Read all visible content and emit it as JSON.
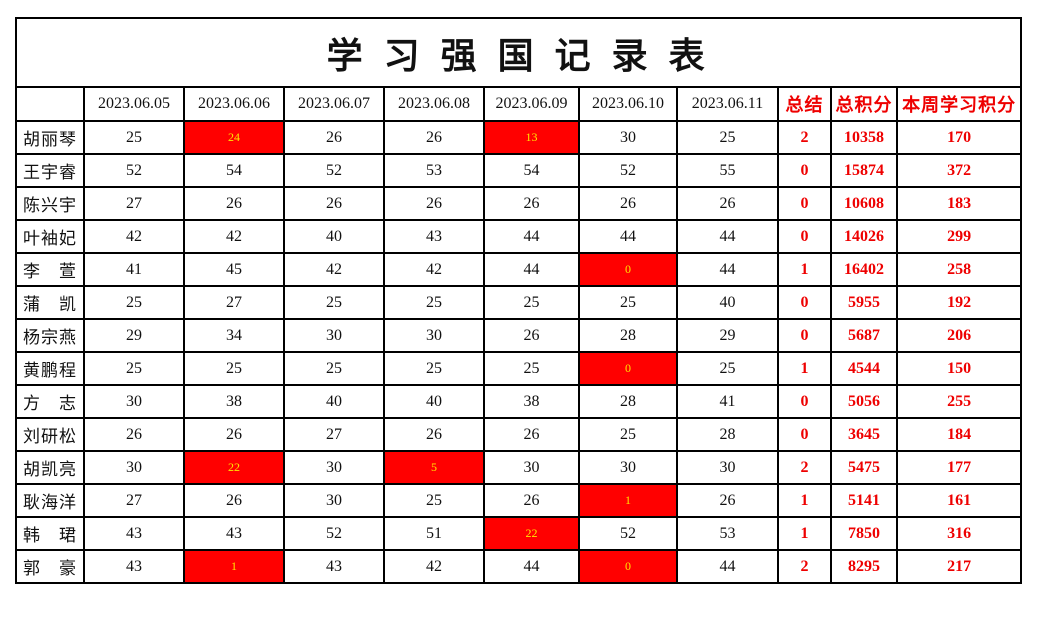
{
  "title": "学 习 强 国 记 录 表",
  "columns": [
    {
      "label": "",
      "accent": false
    },
    {
      "label": "2023.06.05",
      "accent": false
    },
    {
      "label": "2023.06.06",
      "accent": false
    },
    {
      "label": "2023.06.07",
      "accent": false
    },
    {
      "label": "2023.06.08",
      "accent": false
    },
    {
      "label": "2023.06.09",
      "accent": false
    },
    {
      "label": "2023.06.10",
      "accent": false
    },
    {
      "label": "2023.06.11",
      "accent": false
    },
    {
      "label": "总结",
      "accent": true
    },
    {
      "label": "总积分",
      "accent": true
    },
    {
      "label": "本周学习积分",
      "accent": true
    }
  ],
  "rows": [
    {
      "name": "胡丽琴",
      "daily": [
        {
          "v": "25",
          "hl": false
        },
        {
          "v": "24",
          "hl": true
        },
        {
          "v": "26",
          "hl": false
        },
        {
          "v": "26",
          "hl": false
        },
        {
          "v": "13",
          "hl": true
        },
        {
          "v": "30",
          "hl": false
        },
        {
          "v": "25",
          "hl": false
        }
      ],
      "summary": "2",
      "total": "10358",
      "week": "170"
    },
    {
      "name": "王宇睿",
      "daily": [
        {
          "v": "52",
          "hl": false
        },
        {
          "v": "54",
          "hl": false
        },
        {
          "v": "52",
          "hl": false
        },
        {
          "v": "53",
          "hl": false
        },
        {
          "v": "54",
          "hl": false
        },
        {
          "v": "52",
          "hl": false
        },
        {
          "v": "55",
          "hl": false
        }
      ],
      "summary": "0",
      "total": "15874",
      "week": "372"
    },
    {
      "name": "陈兴宇",
      "daily": [
        {
          "v": "27",
          "hl": false
        },
        {
          "v": "26",
          "hl": false
        },
        {
          "v": "26",
          "hl": false
        },
        {
          "v": "26",
          "hl": false
        },
        {
          "v": "26",
          "hl": false
        },
        {
          "v": "26",
          "hl": false
        },
        {
          "v": "26",
          "hl": false
        }
      ],
      "summary": "0",
      "total": "10608",
      "week": "183"
    },
    {
      "name": "叶袖妃",
      "daily": [
        {
          "v": "42",
          "hl": false
        },
        {
          "v": "42",
          "hl": false
        },
        {
          "v": "40",
          "hl": false
        },
        {
          "v": "43",
          "hl": false
        },
        {
          "v": "44",
          "hl": false
        },
        {
          "v": "44",
          "hl": false
        },
        {
          "v": "44",
          "hl": false
        }
      ],
      "summary": "0",
      "total": "14026",
      "week": "299"
    },
    {
      "name": "李　萱",
      "daily": [
        {
          "v": "41",
          "hl": false
        },
        {
          "v": "45",
          "hl": false
        },
        {
          "v": "42",
          "hl": false
        },
        {
          "v": "42",
          "hl": false
        },
        {
          "v": "44",
          "hl": false
        },
        {
          "v": "0",
          "hl": true
        },
        {
          "v": "44",
          "hl": false
        }
      ],
      "summary": "1",
      "total": "16402",
      "week": "258"
    },
    {
      "name": "蒲　凯",
      "daily": [
        {
          "v": "25",
          "hl": false
        },
        {
          "v": "27",
          "hl": false
        },
        {
          "v": "25",
          "hl": false
        },
        {
          "v": "25",
          "hl": false
        },
        {
          "v": "25",
          "hl": false
        },
        {
          "v": "25",
          "hl": false
        },
        {
          "v": "40",
          "hl": false
        }
      ],
      "summary": "0",
      "total": "5955",
      "week": "192"
    },
    {
      "name": "杨宗燕",
      "daily": [
        {
          "v": "29",
          "hl": false
        },
        {
          "v": "34",
          "hl": false
        },
        {
          "v": "30",
          "hl": false
        },
        {
          "v": "30",
          "hl": false
        },
        {
          "v": "26",
          "hl": false
        },
        {
          "v": "28",
          "hl": false
        },
        {
          "v": "29",
          "hl": false
        }
      ],
      "summary": "0",
      "total": "5687",
      "week": "206"
    },
    {
      "name": "黄鹏程",
      "daily": [
        {
          "v": "25",
          "hl": false
        },
        {
          "v": "25",
          "hl": false
        },
        {
          "v": "25",
          "hl": false
        },
        {
          "v": "25",
          "hl": false
        },
        {
          "v": "25",
          "hl": false
        },
        {
          "v": "0",
          "hl": true
        },
        {
          "v": "25",
          "hl": false
        }
      ],
      "summary": "1",
      "total": "4544",
      "week": "150"
    },
    {
      "name": "方　志",
      "daily": [
        {
          "v": "30",
          "hl": false
        },
        {
          "v": "38",
          "hl": false
        },
        {
          "v": "40",
          "hl": false
        },
        {
          "v": "40",
          "hl": false
        },
        {
          "v": "38",
          "hl": false
        },
        {
          "v": "28",
          "hl": false
        },
        {
          "v": "41",
          "hl": false
        }
      ],
      "summary": "0",
      "total": "5056",
      "week": "255"
    },
    {
      "name": "刘研松",
      "daily": [
        {
          "v": "26",
          "hl": false
        },
        {
          "v": "26",
          "hl": false
        },
        {
          "v": "27",
          "hl": false
        },
        {
          "v": "26",
          "hl": false
        },
        {
          "v": "26",
          "hl": false
        },
        {
          "v": "25",
          "hl": false
        },
        {
          "v": "28",
          "hl": false
        }
      ],
      "summary": "0",
      "total": "3645",
      "week": "184"
    },
    {
      "name": "胡凯亮",
      "daily": [
        {
          "v": "30",
          "hl": false
        },
        {
          "v": "22",
          "hl": true
        },
        {
          "v": "30",
          "hl": false
        },
        {
          "v": "5",
          "hl": true
        },
        {
          "v": "30",
          "hl": false
        },
        {
          "v": "30",
          "hl": false
        },
        {
          "v": "30",
          "hl": false
        }
      ],
      "summary": "2",
      "total": "5475",
      "week": "177"
    },
    {
      "name": "耿海洋",
      "daily": [
        {
          "v": "27",
          "hl": false
        },
        {
          "v": "26",
          "hl": false
        },
        {
          "v": "30",
          "hl": false
        },
        {
          "v": "25",
          "hl": false
        },
        {
          "v": "26",
          "hl": false
        },
        {
          "v": "1",
          "hl": true
        },
        {
          "v": "26",
          "hl": false
        }
      ],
      "summary": "1",
      "total": "5141",
      "week": "161"
    },
    {
      "name": "韩　珺",
      "daily": [
        {
          "v": "43",
          "hl": false
        },
        {
          "v": "43",
          "hl": false
        },
        {
          "v": "52",
          "hl": false
        },
        {
          "v": "51",
          "hl": false
        },
        {
          "v": "22",
          "hl": true
        },
        {
          "v": "52",
          "hl": false
        },
        {
          "v": "53",
          "hl": false
        }
      ],
      "summary": "1",
      "total": "7850",
      "week": "316"
    },
    {
      "name": "郭　豪",
      "daily": [
        {
          "v": "43",
          "hl": false
        },
        {
          "v": "1",
          "hl": true
        },
        {
          "v": "43",
          "hl": false
        },
        {
          "v": "42",
          "hl": false
        },
        {
          "v": "44",
          "hl": false
        },
        {
          "v": "0",
          "hl": true
        },
        {
          "v": "44",
          "hl": false
        }
      ],
      "summary": "2",
      "total": "8295",
      "week": "217"
    }
  ],
  "colors": {
    "highlight_bg": "#ff0000",
    "highlight_text": "#ffe400",
    "accent_text": "#ee0000",
    "border": "#000000",
    "background": "#ffffff"
  }
}
